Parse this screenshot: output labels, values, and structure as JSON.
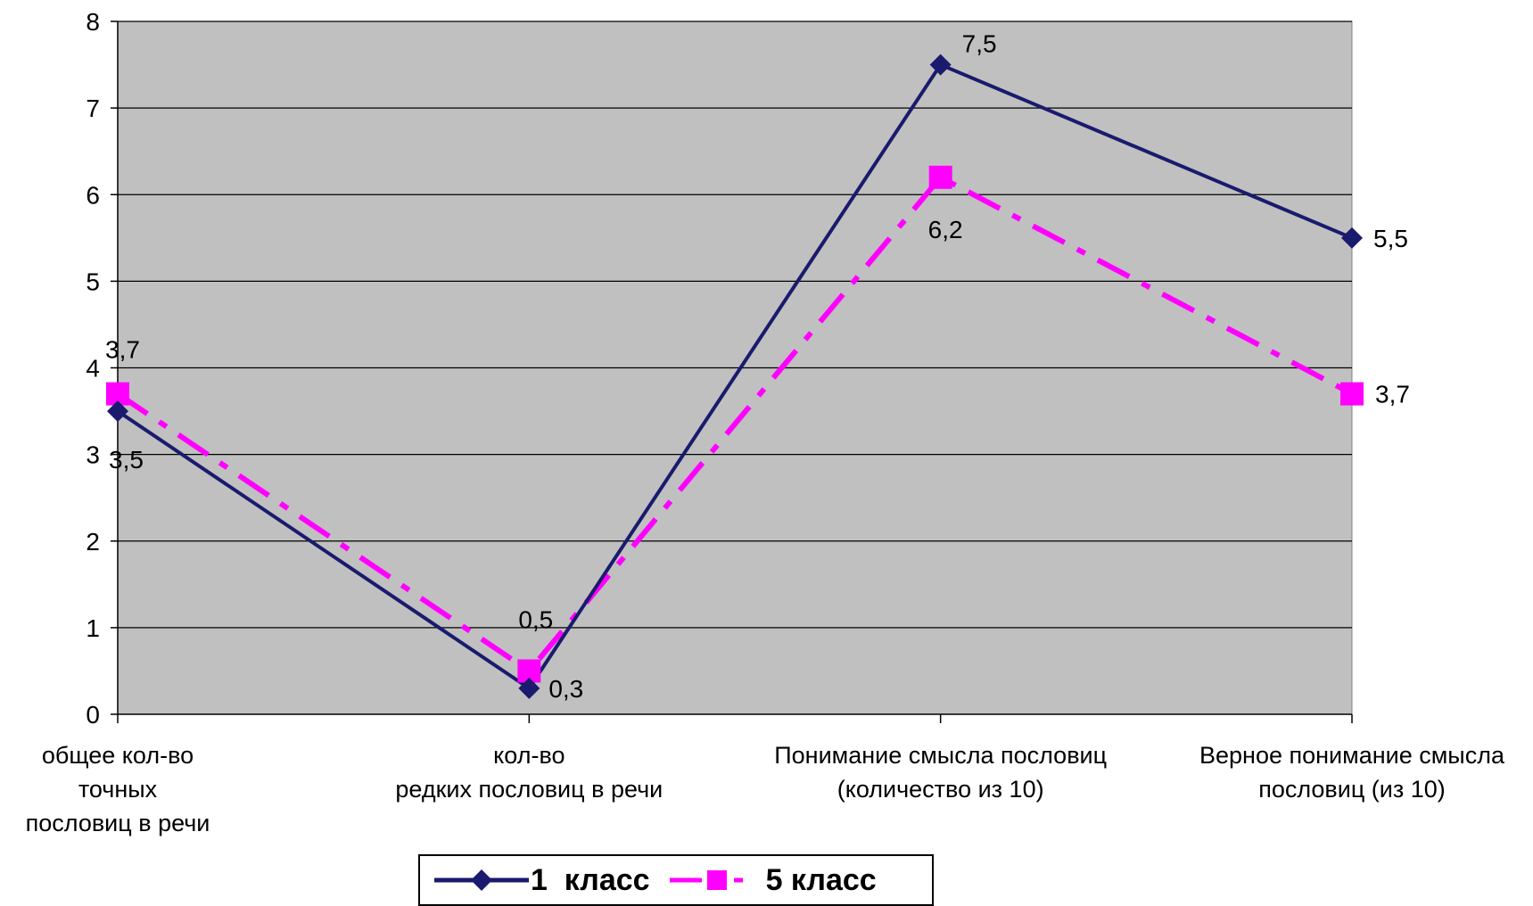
{
  "colors": {
    "plot_background": "#c0c0c0",
    "gridline": "#000000",
    "series_1": "#1a1a6e",
    "series_2": "#ff00ff"
  },
  "chart_data": {
    "type": "line",
    "categories": [
      [
        "общее кол-во",
        "точных",
        "пословиц в речи"
      ],
      [
        "кол-во",
        "редких пословиц в речи"
      ],
      [
        "Понимание смысла пословиц",
        "(количество из 10)"
      ],
      [
        "Верное понимание смысла",
        "пословиц (из 10)"
      ]
    ],
    "ylim": [
      0,
      8
    ],
    "yticks": [
      "0",
      "1",
      "2",
      "3",
      "4",
      "5",
      "6",
      "7",
      "8"
    ],
    "grid": true,
    "legend_position": "bottom",
    "series": [
      {
        "name": "1  класс",
        "values": [
          3.5,
          0.3,
          7.5,
          5.5
        ],
        "labels": [
          "3,5",
          "0,3",
          "7,5",
          "5,5"
        ],
        "marker": "diamond",
        "line_style": "solid",
        "color": "#1a1a6e"
      },
      {
        "name": "5 класс",
        "values": [
          3.7,
          0.5,
          6.2,
          3.7
        ],
        "labels": [
          "3,7",
          "0,5",
          "6,2",
          "3,7"
        ],
        "marker": "square",
        "line_style": "dash-dot",
        "color": "#ff00ff"
      }
    ]
  }
}
